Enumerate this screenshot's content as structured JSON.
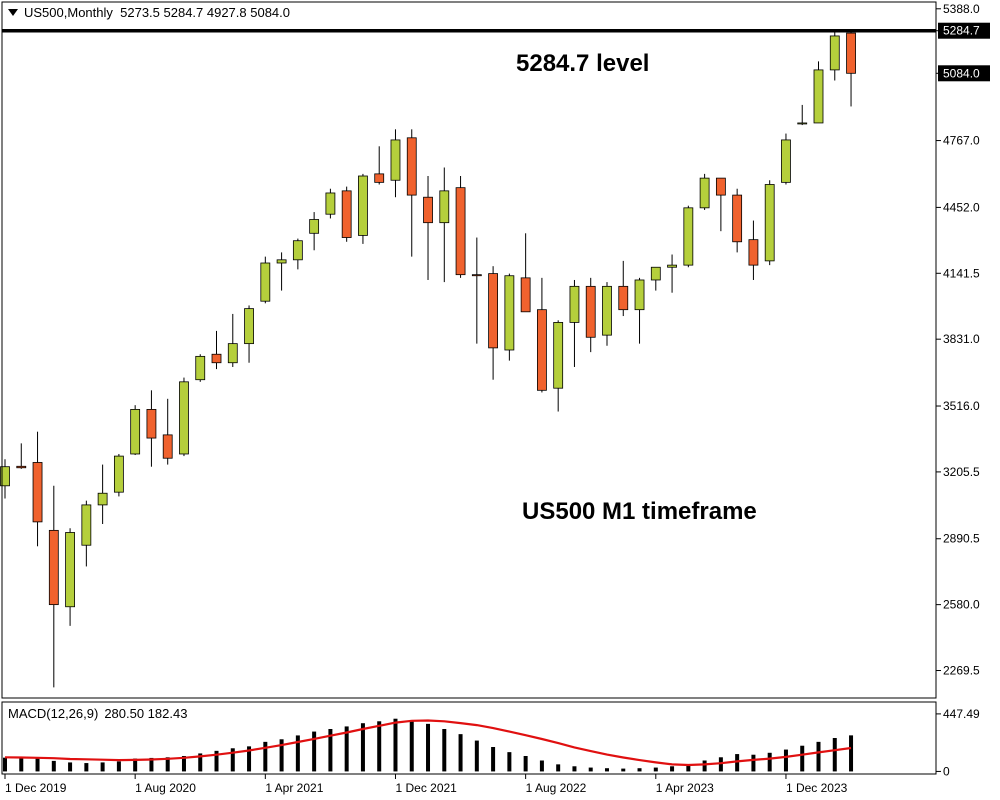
{
  "header": {
    "symbol": "US500,Monthly",
    "ohlc": "5273.5 5284.7 4927.8 5084.0"
  },
  "annotations": {
    "level": "5284.7 level",
    "timeframe": "US500 M1 timeframe"
  },
  "colors": {
    "bull": "#b5cf3c",
    "bear": "#f0622e",
    "macd_hist": "#000000",
    "macd_signal": "#e01010",
    "level_line": "#000000"
  },
  "chart_data": [
    {
      "type": "candlestick",
      "series_name": "US500,Monthly",
      "y_ticks": [
        2269.5,
        2580.0,
        2890.5,
        3205.5,
        3516.0,
        3831.0,
        4141.5,
        4452.0,
        4767.0,
        5084.0,
        5284.7,
        5388.0
      ],
      "ylim": [
        2140,
        5420
      ],
      "x_tick_labels": [
        {
          "label": "1 Dec 2019",
          "index": 0
        },
        {
          "label": "1 Aug 2020",
          "index": 8
        },
        {
          "label": "1 Apr 2021",
          "index": 16
        },
        {
          "label": "1 Dec 2021",
          "index": 24
        },
        {
          "label": "1 Aug 2022",
          "index": 32
        },
        {
          "label": "1 Apr 2023",
          "index": 40
        },
        {
          "label": "1 Dec 2023",
          "index": 48
        }
      ],
      "price_labels": [
        {
          "value": 5284.7,
          "text": "5284.7"
        },
        {
          "value": 5084.0,
          "text": "5084.0"
        }
      ],
      "horizontal_line": 5284.7,
      "candles": [
        {
          "t": "Dec 2019",
          "o": 3140,
          "h": 3265,
          "l": 3080,
          "c": 3230
        },
        {
          "t": "Jan 2020",
          "o": 3232,
          "h": 3340,
          "l": 3220,
          "c": 3225
        },
        {
          "t": "Feb 2020",
          "o": 3250,
          "h": 3395,
          "l": 2855,
          "c": 2970
        },
        {
          "t": "Mar 2020",
          "o": 2930,
          "h": 3140,
          "l": 2190,
          "c": 2580
        },
        {
          "t": "Apr 2020",
          "o": 2570,
          "h": 2940,
          "l": 2480,
          "c": 2920
        },
        {
          "t": "May 2020",
          "o": 2860,
          "h": 3070,
          "l": 2760,
          "c": 3050
        },
        {
          "t": "Jun 2020",
          "o": 3050,
          "h": 3240,
          "l": 2960,
          "c": 3105
        },
        {
          "t": "Jul 2020",
          "o": 3110,
          "h": 3290,
          "l": 3090,
          "c": 3280
        },
        {
          "t": "Aug 2020",
          "o": 3290,
          "h": 3520,
          "l": 3285,
          "c": 3500
        },
        {
          "t": "Sep 2020",
          "o": 3500,
          "h": 3590,
          "l": 3230,
          "c": 3365
        },
        {
          "t": "Oct 2020",
          "o": 3380,
          "h": 3550,
          "l": 3240,
          "c": 3270
        },
        {
          "t": "Nov 2020",
          "o": 3290,
          "h": 3650,
          "l": 3280,
          "c": 3630
        },
        {
          "t": "Dec 2020",
          "o": 3640,
          "h": 3760,
          "l": 3630,
          "c": 3750
        },
        {
          "t": "Jan 2021",
          "o": 3760,
          "h": 3870,
          "l": 3690,
          "c": 3720
        },
        {
          "t": "Feb 2021",
          "o": 3720,
          "h": 3950,
          "l": 3700,
          "c": 3810
        },
        {
          "t": "Mar 2021",
          "o": 3810,
          "h": 3990,
          "l": 3720,
          "c": 3975
        },
        {
          "t": "Apr 2021",
          "o": 4010,
          "h": 4220,
          "l": 4000,
          "c": 4190
        },
        {
          "t": "May 2021",
          "o": 4190,
          "h": 4240,
          "l": 4060,
          "c": 4205
        },
        {
          "t": "Jun 2021",
          "o": 4205,
          "h": 4305,
          "l": 4160,
          "c": 4295
        },
        {
          "t": "Jul 2021",
          "o": 4330,
          "h": 4430,
          "l": 4250,
          "c": 4395
        },
        {
          "t": "Aug 2021",
          "o": 4420,
          "h": 4540,
          "l": 4400,
          "c": 4520
        },
        {
          "t": "Sep 2021",
          "o": 4530,
          "h": 4550,
          "l": 4290,
          "c": 4310
        },
        {
          "t": "Oct 2021",
          "o": 4320,
          "h": 4610,
          "l": 4280,
          "c": 4600
        },
        {
          "t": "Nov 2021",
          "o": 4610,
          "h": 4740,
          "l": 4560,
          "c": 4570
        },
        {
          "t": "Dec 2021",
          "o": 4580,
          "h": 4820,
          "l": 4500,
          "c": 4770
        },
        {
          "t": "Jan 2022",
          "o": 4780,
          "h": 4820,
          "l": 4220,
          "c": 4510
        },
        {
          "t": "Feb 2022",
          "o": 4500,
          "h": 4600,
          "l": 4110,
          "c": 4380
        },
        {
          "t": "Mar 2022",
          "o": 4380,
          "h": 4640,
          "l": 4100,
          "c": 4530
        },
        {
          "t": "Apr 2022",
          "o": 4545,
          "h": 4600,
          "l": 4120,
          "c": 4135
        },
        {
          "t": "May 2022",
          "o": 4135,
          "h": 4310,
          "l": 3810,
          "c": 4130
        },
        {
          "t": "Jun 2022",
          "o": 4140,
          "h": 4175,
          "l": 3640,
          "c": 3790
        },
        {
          "t": "Jul 2022",
          "o": 3780,
          "h": 4140,
          "l": 3730,
          "c": 4130
        },
        {
          "t": "Aug 2022",
          "o": 4120,
          "h": 4330,
          "l": 3960,
          "c": 3960
        },
        {
          "t": "Sep 2022",
          "o": 3970,
          "h": 4120,
          "l": 3580,
          "c": 3590
        },
        {
          "t": "Oct 2022",
          "o": 3600,
          "h": 3920,
          "l": 3490,
          "c": 3910
        },
        {
          "t": "Nov 2022",
          "o": 3910,
          "h": 4110,
          "l": 3700,
          "c": 4080
        },
        {
          "t": "Dec 2022",
          "o": 4080,
          "h": 4120,
          "l": 3770,
          "c": 3840
        },
        {
          "t": "Jan 2023",
          "o": 3850,
          "h": 4100,
          "l": 3800,
          "c": 4080
        },
        {
          "t": "Feb 2023",
          "o": 4080,
          "h": 4200,
          "l": 3940,
          "c": 3970
        },
        {
          "t": "Mar 2023",
          "o": 3970,
          "h": 4120,
          "l": 3810,
          "c": 4110
        },
        {
          "t": "Apr 2023",
          "o": 4110,
          "h": 4170,
          "l": 4060,
          "c": 4170
        },
        {
          "t": "May 2023",
          "o": 4170,
          "h": 4230,
          "l": 4050,
          "c": 4180
        },
        {
          "t": "Jun 2023",
          "o": 4180,
          "h": 4460,
          "l": 4170,
          "c": 4450
        },
        {
          "t": "Jul 2023",
          "o": 4450,
          "h": 4610,
          "l": 4440,
          "c": 4590
        },
        {
          "t": "Aug 2023",
          "o": 4590,
          "h": 4590,
          "l": 4340,
          "c": 4510
        },
        {
          "t": "Sep 2023",
          "o": 4510,
          "h": 4540,
          "l": 4240,
          "c": 4290
        },
        {
          "t": "Oct 2023",
          "o": 4300,
          "h": 4390,
          "l": 4110,
          "c": 4180
        },
        {
          "t": "Nov 2023",
          "o": 4200,
          "h": 4580,
          "l": 4180,
          "c": 4560
        },
        {
          "t": "Dec 2023",
          "o": 4570,
          "h": 4800,
          "l": 4560,
          "c": 4770
        },
        {
          "t": "Jan 2024",
          "o": 4850,
          "h": 4935,
          "l": 4840,
          "c": 4850
        },
        {
          "t": "Feb 2024",
          "o": 4850,
          "h": 5140,
          "l": 4850,
          "c": 5100
        },
        {
          "t": "Mar 2024",
          "o": 5100,
          "h": 5290,
          "l": 5050,
          "c": 5260
        },
        {
          "t": "Apr 2024",
          "o": 5273.5,
          "h": 5284.7,
          "l": 4927.8,
          "c": 5084.0
        }
      ]
    },
    {
      "type": "bar",
      "title": "MACD(12,26,9)",
      "readout": "280.50 182.43",
      "y_ticks": [
        0,
        447.49
      ],
      "ylim": [
        -20,
        540
      ],
      "histogram": [
        107,
        113,
        108,
        82,
        70,
        65,
        70,
        78,
        100,
        105,
        110,
        120,
        140,
        160,
        180,
        195,
        230,
        250,
        280,
        310,
        330,
        350,
        375,
        390,
        410,
        395,
        370,
        330,
        290,
        240,
        190,
        150,
        120,
        85,
        55,
        40,
        30,
        25,
        22,
        25,
        30,
        40,
        55,
        85,
        110,
        135,
        130,
        145,
        170,
        200,
        230,
        260,
        280.5
      ],
      "signal": [
        110,
        108,
        106,
        103,
        97,
        94,
        91,
        88,
        90,
        93,
        98,
        106,
        117,
        130,
        146,
        163,
        184,
        205,
        229,
        253,
        278,
        303,
        330,
        355,
        380,
        394,
        396,
        390,
        376,
        360,
        337,
        310,
        282,
        252,
        220,
        187,
        158,
        131,
        108,
        88,
        70,
        55,
        50,
        55,
        64,
        78,
        90,
        100,
        113,
        130,
        148,
        165,
        182.43
      ]
    }
  ]
}
